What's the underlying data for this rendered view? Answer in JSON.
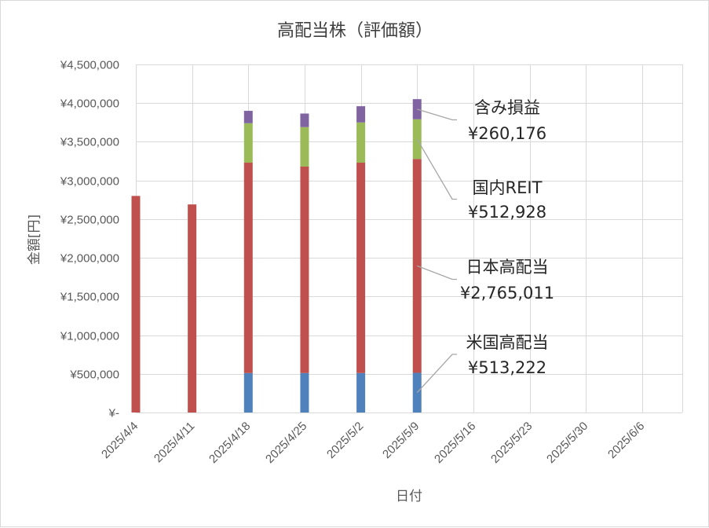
{
  "chart_data": {
    "type": "bar",
    "stacked": true,
    "title": "高配当株（評価額）",
    "xlabel": "日付",
    "ylabel": "金額[円]",
    "ylim": [
      0,
      4500000
    ],
    "y_ticks": [
      {
        "value": 0,
        "label": "¥-"
      },
      {
        "value": 500000,
        "label": "¥500,000"
      },
      {
        "value": 1000000,
        "label": "¥1,000,000"
      },
      {
        "value": 1500000,
        "label": "¥1,500,000"
      },
      {
        "value": 2000000,
        "label": "¥2,000,000"
      },
      {
        "value": 2500000,
        "label": "¥2,500,000"
      },
      {
        "value": 3000000,
        "label": "¥3,000,000"
      },
      {
        "value": 3500000,
        "label": "¥3,500,000"
      },
      {
        "value": 4000000,
        "label": "¥4,000,000"
      },
      {
        "value": 4500000,
        "label": "¥4,500,000"
      }
    ],
    "x_axis": {
      "type": "date",
      "min": "2025-04-04",
      "max": "2025-06-11",
      "tick_labels": [
        {
          "date": "2025-04-04",
          "label": "2025/4/4"
        },
        {
          "date": "2025-04-11",
          "label": "2025/4/11"
        },
        {
          "date": "2025-04-18",
          "label": "2025/4/18"
        },
        {
          "date": "2025-04-25",
          "label": "2025/4/25"
        },
        {
          "date": "2025-05-02",
          "label": "2025/5/2"
        },
        {
          "date": "2025-05-09",
          "label": "2025/5/9"
        },
        {
          "date": "2025-05-16",
          "label": "2025/5/16"
        },
        {
          "date": "2025-05-23",
          "label": "2025/5/23"
        },
        {
          "date": "2025-05-30",
          "label": "2025/5/30"
        },
        {
          "date": "2025-06-06",
          "label": "2025/6/6"
        }
      ]
    },
    "x": [
      "2025-04-04",
      "2025-04-11",
      "2025-04-18",
      "2025-04-25",
      "2025-05-02",
      "2025-05-09"
    ],
    "series": [
      {
        "name": "米国高配当",
        "color": "#4f81bd",
        "values": [
          0,
          0,
          510000,
          510000,
          510000,
          513222
        ]
      },
      {
        "name": "日本高配当",
        "color": "#c0504d",
        "values": [
          2800000,
          2690000,
          2720000,
          2670000,
          2720000,
          2765011
        ]
      },
      {
        "name": "国内REIT",
        "color": "#9bbb59",
        "values": [
          0,
          0,
          510000,
          510000,
          520000,
          512928
        ]
      },
      {
        "name": "含み損益",
        "color": "#8064a2",
        "values": [
          0,
          0,
          160000,
          175000,
          210000,
          260176
        ]
      }
    ],
    "annotations": [
      {
        "series": "含み損益",
        "name": "含み損益",
        "value_label": "¥260,176"
      },
      {
        "series": "国内REIT",
        "name": "国内REIT",
        "value_label": "¥512,928"
      },
      {
        "series": "日本高配当",
        "name": "日本高配当",
        "value_label": "¥2,765,011"
      },
      {
        "series": "米国高配当",
        "name": "米国高配当",
        "value_label": "¥513,222"
      }
    ],
    "grid": {
      "horizontal": true,
      "vertical": true
    },
    "legend": "none"
  }
}
